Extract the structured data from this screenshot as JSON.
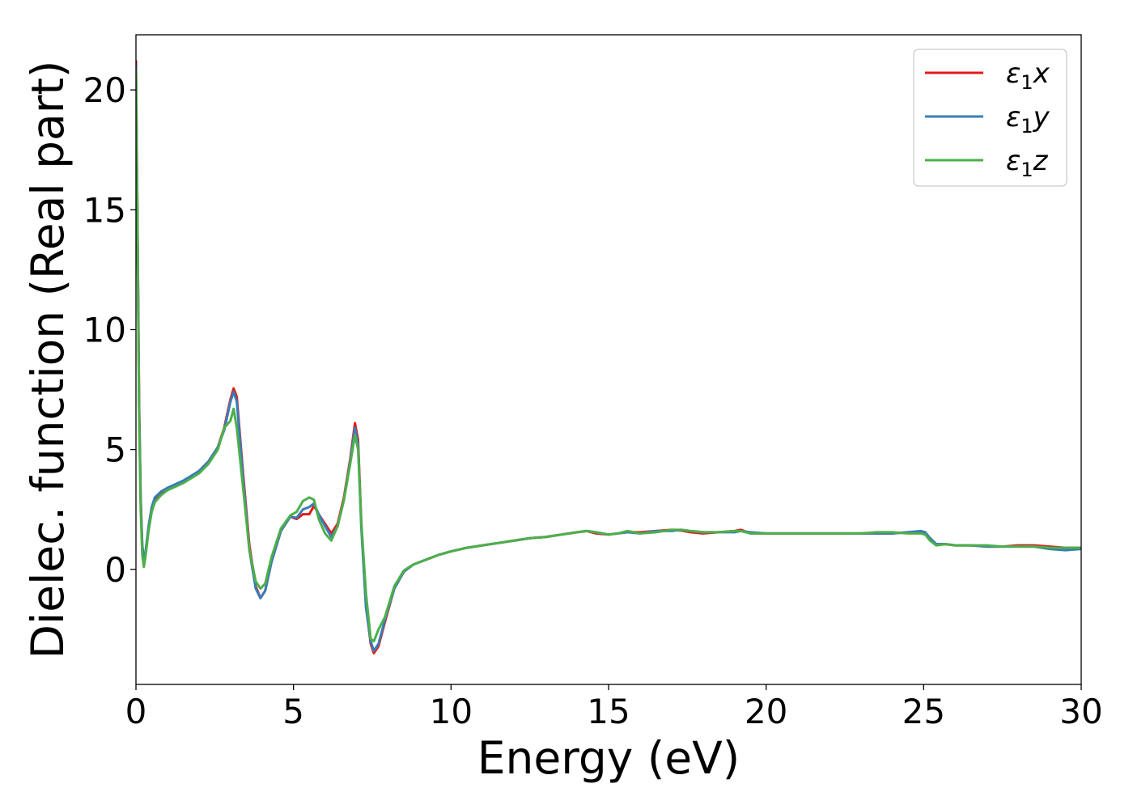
{
  "chart_data": {
    "type": "line",
    "title": "",
    "xlabel": "Energy (eV)",
    "ylabel": "Dielec. function (Real part)",
    "xlim": [
      0,
      30
    ],
    "ylim": [
      -4.8,
      22.3
    ],
    "xticks": [
      0,
      5,
      10,
      15,
      20,
      25,
      30
    ],
    "yticks": [
      0,
      5,
      10,
      15,
      20
    ],
    "grid": false,
    "legend_position": "top-right",
    "series": [
      {
        "name": "ε₁x",
        "label_base": "ε",
        "label_sub": "1",
        "label_tail": "x",
        "color": "#e41a1c",
        "x": [
          0,
          0.05,
          0.1,
          0.15,
          0.2,
          0.25,
          0.3,
          0.4,
          0.5,
          0.6,
          0.8,
          1.0,
          1.5,
          2.0,
          2.3,
          2.6,
          2.8,
          3.0,
          3.1,
          3.2,
          3.4,
          3.6,
          3.8,
          3.95,
          4.1,
          4.3,
          4.6,
          4.9,
          5.1,
          5.3,
          5.5,
          5.65,
          5.8,
          6.0,
          6.2,
          6.4,
          6.6,
          6.8,
          6.95,
          7.05,
          7.15,
          7.3,
          7.45,
          7.55,
          7.7,
          7.9,
          8.2,
          8.5,
          8.8,
          9.0,
          9.3,
          9.6,
          10,
          10.5,
          11,
          11.5,
          12,
          12.5,
          13,
          13.5,
          14,
          14.3,
          14.6,
          15,
          15.3,
          15.6,
          16,
          16.5,
          17,
          17.3,
          17.6,
          18,
          18.5,
          19,
          19.2,
          19.5,
          20,
          20.5,
          21,
          21.5,
          22,
          22.5,
          23,
          23.5,
          24,
          24.5,
          24.9,
          25.05,
          25.2,
          25.4,
          25.7,
          26,
          26.5,
          27,
          27.5,
          28,
          28.5,
          29,
          29.5,
          30
        ],
        "y": [
          21.2,
          14.5,
          7.0,
          3.0,
          1.0,
          0.35,
          0.6,
          1.7,
          2.5,
          2.9,
          3.2,
          3.35,
          3.65,
          4.1,
          4.5,
          5.1,
          5.9,
          7.1,
          7.55,
          7.2,
          4.0,
          1.0,
          -0.7,
          -1.2,
          -0.9,
          0.3,
          1.6,
          2.2,
          2.1,
          2.3,
          2.3,
          2.65,
          2.3,
          1.9,
          1.5,
          1.9,
          3.0,
          4.6,
          6.1,
          5.4,
          2.0,
          -1.5,
          -3.1,
          -3.5,
          -3.2,
          -2.2,
          -0.8,
          -0.1,
          0.2,
          0.3,
          0.45,
          0.6,
          0.75,
          0.9,
          1.0,
          1.1,
          1.2,
          1.3,
          1.35,
          1.45,
          1.55,
          1.6,
          1.5,
          1.45,
          1.5,
          1.55,
          1.55,
          1.6,
          1.65,
          1.62,
          1.55,
          1.5,
          1.55,
          1.6,
          1.65,
          1.5,
          1.5,
          1.5,
          1.5,
          1.5,
          1.5,
          1.5,
          1.5,
          1.5,
          1.5,
          1.55,
          1.55,
          1.5,
          1.3,
          1.05,
          1.05,
          1.0,
          1.0,
          0.95,
          0.95,
          1.0,
          1.0,
          0.95,
          0.9,
          0.9
        ]
      },
      {
        "name": "ε₁y",
        "label_base": "ε",
        "label_sub": "1",
        "label_tail": "y",
        "color": "#377eb8",
        "x": [
          0,
          0.05,
          0.1,
          0.15,
          0.2,
          0.25,
          0.3,
          0.4,
          0.5,
          0.6,
          0.8,
          1.0,
          1.5,
          2.0,
          2.3,
          2.6,
          2.8,
          3.0,
          3.1,
          3.2,
          3.4,
          3.6,
          3.8,
          3.95,
          4.1,
          4.3,
          4.6,
          4.9,
          5.1,
          5.3,
          5.5,
          5.65,
          5.8,
          6.0,
          6.2,
          6.4,
          6.6,
          6.8,
          6.95,
          7.05,
          7.15,
          7.3,
          7.45,
          7.55,
          7.7,
          7.9,
          8.2,
          8.5,
          8.8,
          9.0,
          9.3,
          9.6,
          10,
          10.5,
          11,
          11.5,
          12,
          12.5,
          13,
          13.5,
          14,
          14.3,
          14.6,
          15,
          15.3,
          15.6,
          16,
          16.5,
          17,
          17.3,
          17.6,
          18,
          18.5,
          19,
          19.2,
          19.5,
          20,
          20.5,
          21,
          21.5,
          22,
          22.5,
          23,
          23.5,
          24,
          24.5,
          24.9,
          25.05,
          25.2,
          25.4,
          25.7,
          26,
          26.5,
          27,
          27.5,
          28,
          28.5,
          29,
          29.5,
          30
        ],
        "y": [
          21.0,
          14.2,
          6.8,
          2.9,
          1.0,
          0.4,
          0.7,
          1.8,
          2.6,
          3.0,
          3.25,
          3.4,
          3.7,
          4.1,
          4.5,
          5.1,
          5.8,
          7.0,
          7.4,
          7.0,
          3.8,
          0.8,
          -0.8,
          -1.2,
          -0.9,
          0.3,
          1.6,
          2.2,
          2.15,
          2.5,
          2.6,
          2.75,
          2.3,
          1.8,
          1.35,
          1.8,
          2.9,
          4.5,
          5.9,
          5.2,
          1.8,
          -1.6,
          -3.0,
          -3.4,
          -3.1,
          -2.1,
          -0.8,
          -0.1,
          0.2,
          0.3,
          0.45,
          0.6,
          0.75,
          0.9,
          1.0,
          1.1,
          1.2,
          1.3,
          1.35,
          1.45,
          1.55,
          1.6,
          1.55,
          1.45,
          1.5,
          1.55,
          1.5,
          1.6,
          1.6,
          1.65,
          1.6,
          1.55,
          1.55,
          1.55,
          1.6,
          1.55,
          1.5,
          1.5,
          1.5,
          1.5,
          1.5,
          1.5,
          1.5,
          1.5,
          1.5,
          1.55,
          1.6,
          1.55,
          1.3,
          1.05,
          1.05,
          1.0,
          1.0,
          0.95,
          0.95,
          0.95,
          0.95,
          0.85,
          0.8,
          0.85
        ]
      },
      {
        "name": "ε₁z",
        "label_base": "ε",
        "label_sub": "1",
        "label_tail": "z",
        "color": "#4daf4a",
        "x": [
          0,
          0.05,
          0.1,
          0.15,
          0.2,
          0.25,
          0.3,
          0.4,
          0.5,
          0.6,
          0.8,
          1.0,
          1.5,
          2.0,
          2.3,
          2.6,
          2.8,
          3.0,
          3.1,
          3.2,
          3.4,
          3.6,
          3.8,
          3.95,
          4.1,
          4.3,
          4.6,
          4.9,
          5.1,
          5.3,
          5.5,
          5.65,
          5.8,
          6.0,
          6.2,
          6.4,
          6.6,
          6.8,
          6.95,
          7.05,
          7.15,
          7.3,
          7.45,
          7.55,
          7.7,
          7.9,
          8.2,
          8.5,
          8.8,
          9.0,
          9.3,
          9.6,
          10,
          10.5,
          11,
          11.5,
          12,
          12.5,
          13,
          13.5,
          14,
          14.3,
          14.6,
          15,
          15.3,
          15.6,
          16,
          16.5,
          17,
          17.3,
          17.6,
          18,
          18.5,
          19,
          19.2,
          19.5,
          20,
          20.5,
          21,
          21.5,
          22,
          22.5,
          23,
          23.5,
          24,
          24.5,
          24.9,
          25.05,
          25.2,
          25.4,
          25.7,
          26,
          26.5,
          27,
          27.5,
          28,
          28.5,
          29,
          29.5,
          30
        ],
        "y": [
          20.8,
          13.8,
          6.4,
          2.5,
          0.6,
          0.1,
          0.5,
          1.6,
          2.4,
          2.8,
          3.1,
          3.3,
          3.6,
          4.0,
          4.4,
          5.0,
          5.9,
          6.2,
          6.7,
          5.9,
          3.4,
          0.8,
          -0.5,
          -0.8,
          -0.6,
          0.5,
          1.7,
          2.25,
          2.4,
          2.85,
          3.0,
          2.9,
          2.1,
          1.5,
          1.2,
          1.8,
          2.9,
          4.4,
          5.6,
          5.0,
          2.0,
          -1.0,
          -2.9,
          -3.0,
          -2.5,
          -2.0,
          -0.7,
          -0.05,
          0.2,
          0.3,
          0.45,
          0.6,
          0.75,
          0.9,
          1.0,
          1.1,
          1.2,
          1.3,
          1.35,
          1.45,
          1.55,
          1.6,
          1.55,
          1.45,
          1.5,
          1.6,
          1.5,
          1.55,
          1.65,
          1.65,
          1.6,
          1.55,
          1.55,
          1.6,
          1.6,
          1.5,
          1.5,
          1.5,
          1.5,
          1.5,
          1.5,
          1.5,
          1.5,
          1.55,
          1.55,
          1.5,
          1.5,
          1.45,
          1.2,
          1.0,
          1.05,
          1.0,
          1.0,
          1.0,
          0.95,
          0.95,
          0.95,
          0.9,
          0.9,
          0.9
        ]
      }
    ]
  }
}
